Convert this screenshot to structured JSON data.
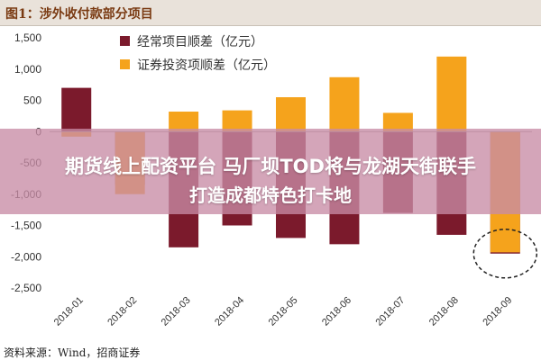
{
  "header": {
    "title": "图1：涉外收付款部分项目"
  },
  "source_text": "资料来源：Wind，招商证券",
  "overlay": {
    "line1": "期货线上配资平台 马厂坝TOD将与龙湖天街联手",
    "line2": "打造成都特色打卡地"
  },
  "chart_data": {
    "type": "bar",
    "categories": [
      "2018-01",
      "2018-02",
      "2018-03",
      "2018-04",
      "2018-05",
      "2018-06",
      "2018-07",
      "2018-08",
      "2018-09"
    ],
    "series": [
      {
        "name": "经常项目顺差（亿元）",
        "color": "#7b1a2c",
        "values": [
          700,
          -850,
          -1850,
          -1500,
          -1700,
          -1800,
          -1300,
          -1650,
          -1950
        ]
      },
      {
        "name": "证券投资项顺差（亿元）",
        "color": "#f5a31c",
        "values": [
          -80,
          -1000,
          320,
          340,
          550,
          870,
          300,
          1200,
          -1930
        ]
      }
    ],
    "ylim": [
      -2500,
      1500
    ],
    "yticks": [
      1500,
      1000,
      500,
      0,
      -500,
      -1000,
      -1500,
      -2000,
      -2500
    ],
    "ytick_labels": [
      "1,500",
      "1,000",
      "500",
      "0",
      "-500",
      "-1,000",
      "-1,500",
      "-2,000",
      "-2,500"
    ],
    "legend_position": "top-left",
    "highlight_category": "2018-09",
    "grid": false
  }
}
